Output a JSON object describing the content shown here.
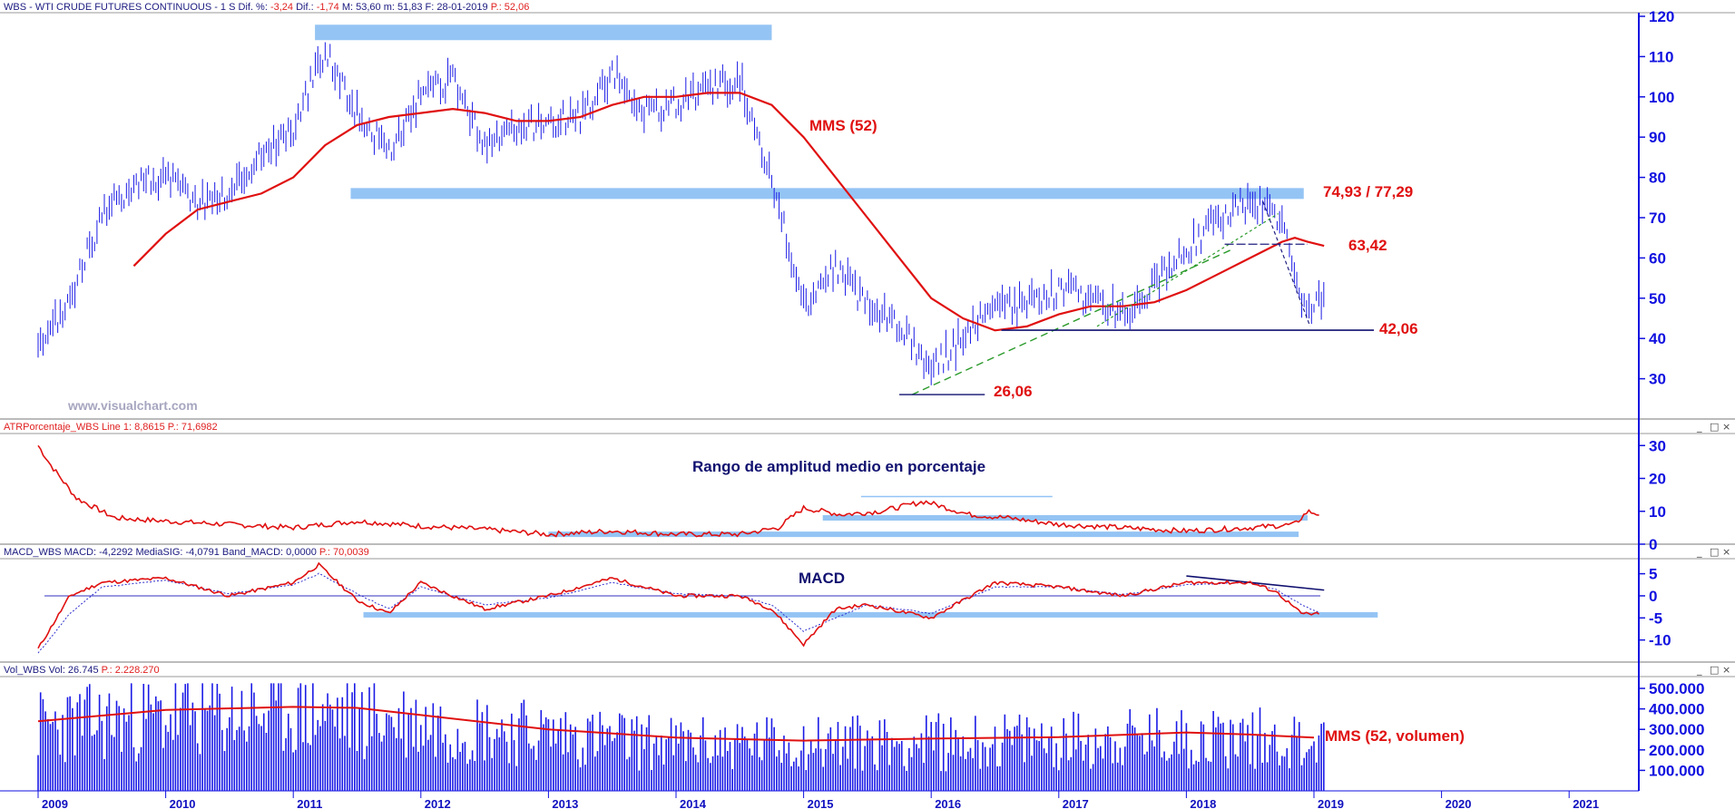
{
  "colors": {
    "price": "#1a1ae6",
    "ma": "#e01010",
    "zone": "#94c4f4",
    "axis": "#1010e0",
    "trend": "#2a9a2a",
    "support": "#101070"
  },
  "panels": {
    "price": {
      "title_main": "WBS - WTI CRUDE FUTURES CONTINUOUS -  1 S  Dif. %: ",
      "title_dif": "-3,24",
      "title_mid": "  Dif.: ",
      "title_difv": "-1,74",
      "title_rest": "  M: 53,60  m: 51,83  F: 28-01-2019  ",
      "title_p": "P.: 52,06",
      "watermark": "www.visualchart.com",
      "ma_label": "MMS (52)",
      "lvl_high": "74,93 / 77,29",
      "lvl_mid": "63,42",
      "lvl_low": "42,06",
      "lvl_min": "26,06"
    },
    "atr": {
      "title_main": "ATRPorcentaje_WBS  Line 1: ",
      "title_val": "8,8615",
      "title_p": "  P.: 71,6982",
      "label": "Rango de amplitud medio en porcentaje"
    },
    "macd": {
      "title_main": "MACD_WBS  MACD: -4,2292  MediaSIG: -4,0791  Band_MACD: 0,0000  ",
      "title_p": "P.: 70,0039",
      "label": "MACD"
    },
    "vol": {
      "title_main": "Vol_WBS  Vol: 26.745  ",
      "title_p": "P.: 2.228.270",
      "ma_label": "MMS (52, volumen)"
    }
  },
  "window_controls": [
    "_",
    "□",
    "×"
  ],
  "chart_data": [
    {
      "type": "bar",
      "name": "price",
      "ylim": [
        20,
        120
      ],
      "yticks": [
        "30",
        "40",
        "50",
        "60",
        "70",
        "80",
        "90",
        "100",
        "110",
        "120"
      ],
      "x": [
        2009.0,
        2009.25,
        2009.5,
        2009.75,
        2010.0,
        2010.25,
        2010.5,
        2010.75,
        2011.0,
        2011.25,
        2011.5,
        2011.75,
        2012.0,
        2012.25,
        2012.5,
        2012.75,
        2013.0,
        2013.25,
        2013.5,
        2013.75,
        2014.0,
        2014.25,
        2014.5,
        2014.75,
        2015.0,
        2015.25,
        2015.5,
        2015.75,
        2016.0,
        2016.25,
        2016.5,
        2016.75,
        2017.0,
        2017.25,
        2017.5,
        2017.75,
        2018.0,
        2018.25,
        2018.5,
        2018.75,
        2018.85,
        2018.95,
        2019.08
      ],
      "close": [
        36,
        50,
        70,
        79,
        80,
        74,
        76,
        86,
        92,
        112,
        96,
        86,
        100,
        104,
        88,
        92,
        94,
        95,
        106,
        96,
        98,
        102,
        104,
        80,
        48,
        58,
        48,
        44,
        32,
        40,
        48,
        48,
        52,
        50,
        46,
        54,
        62,
        70,
        74,
        70,
        54,
        45,
        52
      ],
      "ma52": [
        null,
        null,
        null,
        58,
        66,
        72,
        74,
        76,
        80,
        88,
        93,
        95,
        96,
        97,
        96,
        94,
        94,
        95,
        98,
        100,
        100,
        101,
        101,
        98,
        90,
        80,
        70,
        60,
        50,
        45,
        42,
        43,
        46,
        48,
        48,
        49,
        52,
        56,
        60,
        64,
        65,
        64,
        63
      ],
      "levels": [
        {
          "label": "74,93 / 77,29",
          "value": 76
        },
        {
          "label": "63,42",
          "value": 63.42
        },
        {
          "label": "42,06",
          "value": 42.06
        },
        {
          "label": "26,06",
          "value": 26.06
        }
      ]
    },
    {
      "type": "line",
      "name": "atr",
      "ylim": [
        0,
        32
      ],
      "yticks": [
        "0",
        "10",
        "20",
        "30"
      ],
      "x": [
        2009.0,
        2009.1,
        2009.3,
        2009.6,
        2010.0,
        2010.5,
        2011.0,
        2011.5,
        2012.0,
        2012.5,
        2013.0,
        2013.5,
        2014.0,
        2014.5,
        2014.8,
        2015.0,
        2015.3,
        2015.6,
        2015.95,
        2016.3,
        2016.6,
        2017.0,
        2017.5,
        2018.0,
        2018.5,
        2018.85,
        2018.95,
        2019.05
      ],
      "values": [
        30,
        24,
        14,
        8,
        7,
        6,
        5,
        7,
        5.5,
        4.5,
        3,
        4,
        3,
        3,
        5,
        11,
        9,
        10,
        13,
        9,
        8,
        6,
        5,
        4,
        5,
        6,
        10,
        9
      ]
    },
    {
      "type": "line",
      "name": "macd",
      "ylim": [
        -15,
        8
      ],
      "yticks": [
        "-10",
        "-5",
        "0",
        "5"
      ],
      "x": [
        2009.0,
        2009.25,
        2009.5,
        2010.0,
        2010.5,
        2011.0,
        2011.2,
        2011.5,
        2011.75,
        2012.0,
        2012.5,
        2013.0,
        2013.5,
        2014.0,
        2014.5,
        2014.75,
        2015.0,
        2015.25,
        2015.5,
        2016.0,
        2016.5,
        2017.0,
        2017.5,
        2018.0,
        2018.5,
        2018.7,
        2018.9,
        2019.05
      ],
      "macd": [
        -12,
        0,
        3,
        4,
        0,
        3,
        7,
        -1,
        -4,
        3,
        -3,
        0,
        4,
        0,
        0,
        -3,
        -11,
        -3,
        -2,
        -5,
        3,
        2,
        0,
        3,
        3,
        1,
        -4,
        -4.2
      ],
      "signal": [
        -13,
        -4,
        2,
        3.5,
        0.5,
        2.5,
        5,
        0.5,
        -3,
        2,
        -2,
        -0.5,
        3,
        0.5,
        0,
        -2,
        -8,
        -5,
        -2,
        -4,
        2,
        2,
        0.3,
        2.5,
        3,
        1.5,
        -2,
        -4
      ]
    },
    {
      "type": "bar",
      "name": "volume",
      "ylim": [
        0,
        540000
      ],
      "yticks": [
        "100.000",
        "200.000",
        "300.000",
        "400.000",
        "500.000"
      ],
      "x": [
        2009.0,
        2010.0,
        2011.0,
        2011.5,
        2012.0,
        2013.0,
        2014.0,
        2015.0,
        2016.0,
        2017.0,
        2018.0,
        2018.5,
        2019.0
      ],
      "values": [
        360000,
        410000,
        440000,
        410000,
        380000,
        320000,
        260000,
        270000,
        270000,
        280000,
        300000,
        300000,
        270000
      ],
      "ma52": [
        340000,
        395000,
        410000,
        405000,
        370000,
        300000,
        260000,
        245000,
        255000,
        262000,
        285000,
        275000,
        260000
      ]
    }
  ],
  "xaxis": {
    "years": [
      "2009",
      "2010",
      "2011",
      "2012",
      "2013",
      "2014",
      "2015",
      "2016",
      "2017",
      "2018",
      "2019",
      "2020",
      "2021"
    ]
  }
}
